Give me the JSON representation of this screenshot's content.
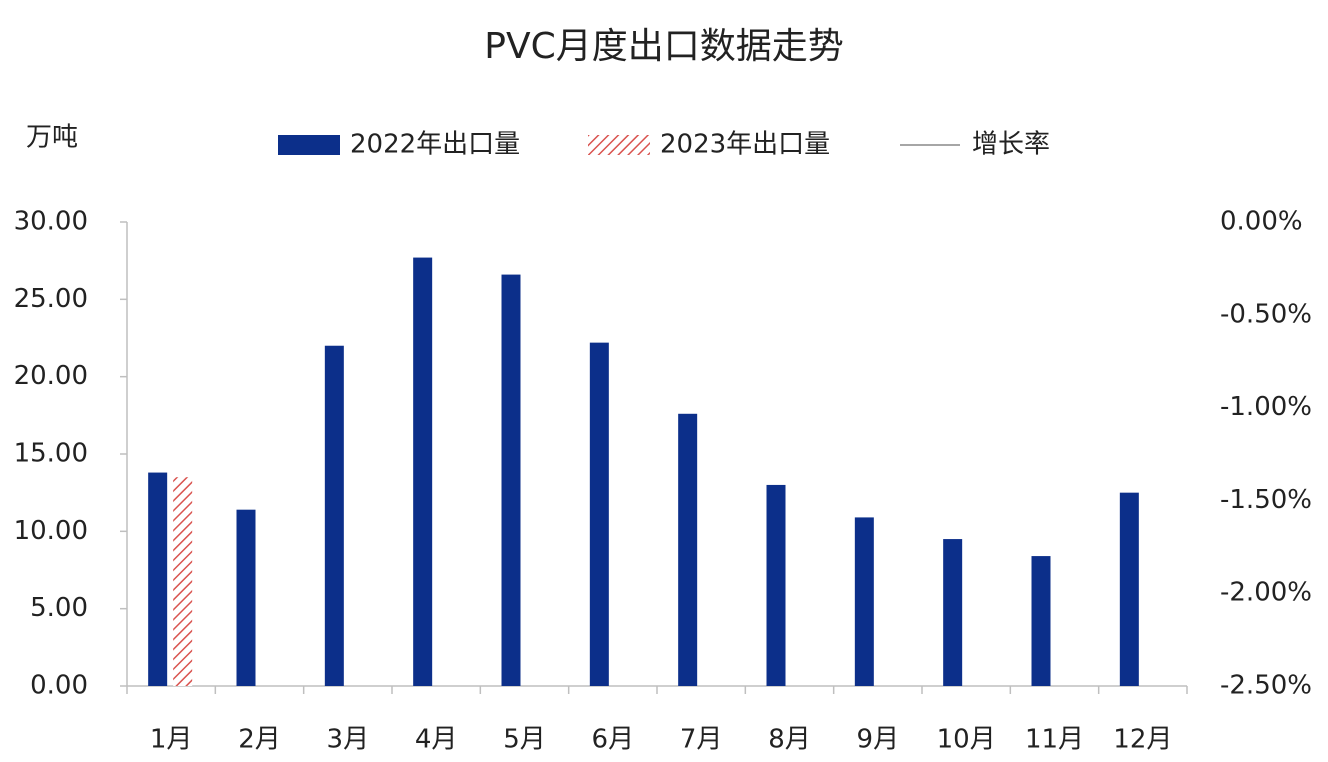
{
  "chart_data": {
    "type": "bar",
    "title": "PVC月度出口数据走势",
    "y_label": "万吨",
    "categories": [
      "1月",
      "2月",
      "3月",
      "4月",
      "5月",
      "6月",
      "7月",
      "8月",
      "9月",
      "10月",
      "11月",
      "12月"
    ],
    "series": [
      {
        "name": "2022年出口量",
        "color": "#0c2f8a",
        "values": [
          13.8,
          11.4,
          22.0,
          27.7,
          26.6,
          22.2,
          17.6,
          13.0,
          10.9,
          9.5,
          8.4,
          12.5
        ]
      },
      {
        "name": "2023年出口量",
        "color": "#d9534f",
        "hatch": true,
        "values": [
          13.5,
          null,
          null,
          null,
          null,
          null,
          null,
          null,
          null,
          null,
          null,
          null
        ]
      },
      {
        "name": "增长率",
        "color": "#a6a6a6",
        "type": "line",
        "axis": "y2",
        "values": [
          null,
          null,
          null,
          null,
          null,
          null,
          null,
          null,
          null,
          null,
          null,
          null
        ]
      }
    ],
    "ylim": [
      0,
      30
    ],
    "yticks": [
      {
        "value": 0,
        "label": "0.00"
      },
      {
        "value": 5,
        "label": "5.00"
      },
      {
        "value": 10,
        "label": "10.00"
      },
      {
        "value": 15,
        "label": "15.00"
      },
      {
        "value": 20,
        "label": "20.00"
      },
      {
        "value": 25,
        "label": "25.00"
      },
      {
        "value": 30,
        "label": "30.00"
      }
    ],
    "y2lim": [
      -2.5,
      0
    ],
    "y2ticks": [
      {
        "value": -2.5,
        "label": "-2.50%"
      },
      {
        "value": -2,
        "label": "-2.00%"
      },
      {
        "value": -1.5,
        "label": "-1.50%"
      },
      {
        "value": -1,
        "label": "-1.00%"
      },
      {
        "value": -0.5,
        "label": "-0.50%"
      },
      {
        "value": 0,
        "label": "0.00%"
      }
    ],
    "grid": false,
    "legend": "top"
  }
}
